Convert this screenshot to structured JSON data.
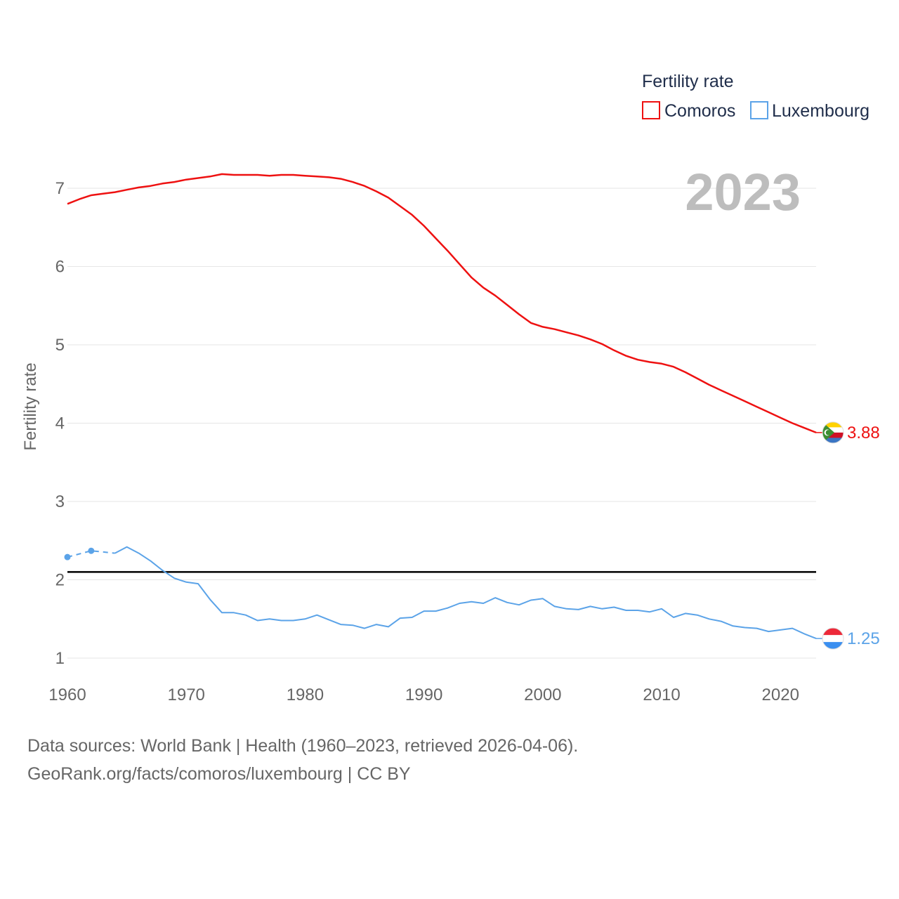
{
  "chart_data": {
    "type": "line",
    "title": "Fertility rate",
    "year_label": "2023",
    "xlabel": "",
    "ylabel": "Fertility rate",
    "xlim": [
      1960,
      2023
    ],
    "ylim": [
      0.85,
      7.3
    ],
    "x_ticks": [
      1960,
      1970,
      1980,
      1990,
      2000,
      2010,
      2020
    ],
    "y_ticks": [
      1,
      2,
      3,
      4,
      5,
      6,
      7
    ],
    "grid": true,
    "legend_position": "top-right",
    "reference_line": {
      "value": 2.1,
      "color": "#000000"
    },
    "series": [
      {
        "name": "Comoros",
        "color": "#ee1111",
        "end_label": "3.88",
        "flag": "comoros-flag",
        "x": [
          1960,
          1961,
          1962,
          1963,
          1964,
          1965,
          1966,
          1967,
          1968,
          1969,
          1970,
          1971,
          1972,
          1973,
          1974,
          1975,
          1976,
          1977,
          1978,
          1979,
          1980,
          1981,
          1982,
          1983,
          1984,
          1985,
          1986,
          1987,
          1988,
          1989,
          1990,
          1991,
          1992,
          1993,
          1994,
          1995,
          1996,
          1997,
          1998,
          1999,
          2000,
          2001,
          2002,
          2003,
          2004,
          2005,
          2006,
          2007,
          2008,
          2009,
          2010,
          2011,
          2012,
          2013,
          2014,
          2015,
          2016,
          2017,
          2018,
          2019,
          2020,
          2021,
          2022,
          2023
        ],
        "values": [
          6.8,
          6.86,
          6.91,
          6.93,
          6.95,
          6.98,
          7.01,
          7.03,
          7.06,
          7.08,
          7.11,
          7.13,
          7.15,
          7.18,
          7.17,
          7.17,
          7.17,
          7.16,
          7.17,
          7.17,
          7.16,
          7.15,
          7.14,
          7.12,
          7.08,
          7.03,
          6.96,
          6.88,
          6.77,
          6.66,
          6.52,
          6.36,
          6.2,
          6.03,
          5.86,
          5.73,
          5.63,
          5.51,
          5.39,
          5.28,
          5.23,
          5.2,
          5.16,
          5.12,
          5.07,
          5.01,
          4.93,
          4.86,
          4.81,
          4.78,
          4.76,
          4.72,
          4.65,
          4.57,
          4.49,
          4.42,
          4.35,
          4.28,
          4.21,
          4.14,
          4.07,
          4.0,
          3.94,
          3.88
        ]
      },
      {
        "name": "Luxembourg",
        "color": "#5ba3e8",
        "end_label": "1.25",
        "flag": "luxembourg-flag",
        "dashed_x": [
          1960,
          1962,
          1964
        ],
        "dashed_values": [
          2.29,
          2.37,
          2.34
        ],
        "x": [
          1964,
          1965,
          1966,
          1967,
          1968,
          1969,
          1970,
          1971,
          1972,
          1973,
          1974,
          1975,
          1976,
          1977,
          1978,
          1979,
          1980,
          1981,
          1982,
          1983,
          1984,
          1985,
          1986,
          1987,
          1988,
          1989,
          1990,
          1991,
          1992,
          1993,
          1994,
          1995,
          1996,
          1997,
          1998,
          1999,
          2000,
          2001,
          2002,
          2003,
          2004,
          2005,
          2006,
          2007,
          2008,
          2009,
          2010,
          2011,
          2012,
          2013,
          2014,
          2015,
          2016,
          2017,
          2018,
          2019,
          2020,
          2021,
          2022,
          2023
        ],
        "values": [
          2.34,
          2.42,
          2.34,
          2.24,
          2.12,
          2.02,
          1.97,
          1.95,
          1.75,
          1.58,
          1.58,
          1.55,
          1.48,
          1.5,
          1.48,
          1.48,
          1.5,
          1.55,
          1.49,
          1.43,
          1.42,
          1.38,
          1.43,
          1.4,
          1.51,
          1.52,
          1.6,
          1.6,
          1.64,
          1.7,
          1.72,
          1.7,
          1.77,
          1.71,
          1.68,
          1.74,
          1.76,
          1.66,
          1.63,
          1.62,
          1.66,
          1.63,
          1.65,
          1.61,
          1.61,
          1.59,
          1.63,
          1.52,
          1.57,
          1.55,
          1.5,
          1.47,
          1.41,
          1.39,
          1.38,
          1.34,
          1.36,
          1.38,
          1.31,
          1.25
        ]
      }
    ]
  },
  "source": {
    "line1": "Data sources: World Bank | Health (1960–2023, retrieved 2026-04-06).",
    "line2": "GeoRank.org/facts/comoros/luxembourg | CC BY"
  }
}
